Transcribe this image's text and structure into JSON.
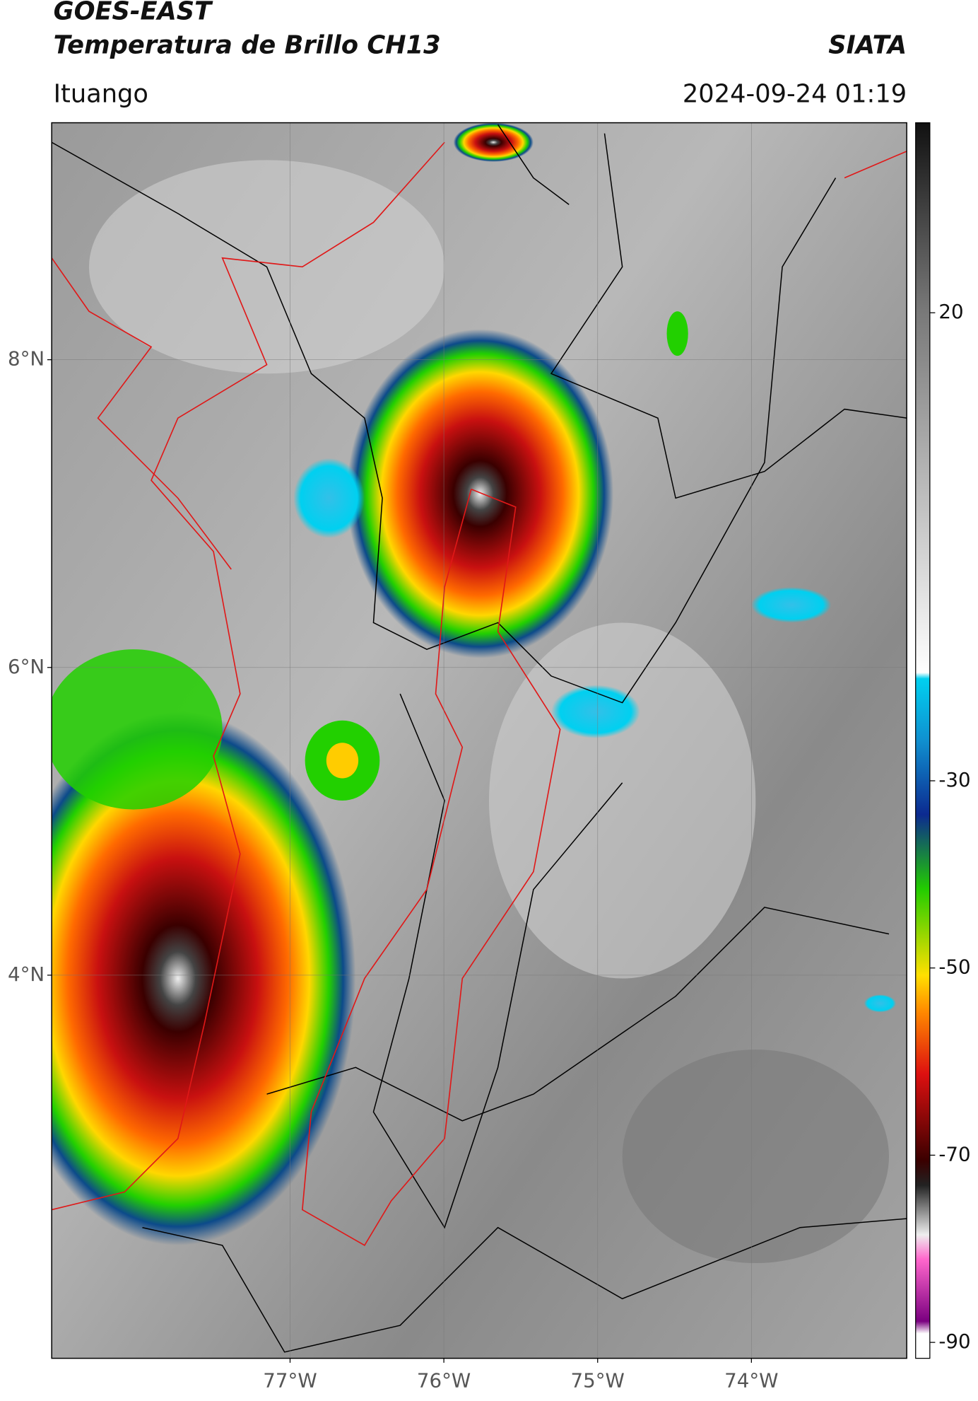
{
  "header": {
    "title": "GOES-EAST",
    "subtitle": "Temperatura de Brillo CH13",
    "org": "SIATA",
    "region": "Ituango",
    "timestamp": "2024-09-24 01:19"
  },
  "map": {
    "ylim": [
      1.51,
      9.54
    ],
    "xlim": [
      -78.55,
      -72.99
    ],
    "yticks": [
      {
        "value": 8,
        "label": "8°N"
      },
      {
        "value": 6,
        "label": "6°N"
      },
      {
        "value": 4,
        "label": "4°N"
      }
    ],
    "xticks": [
      {
        "value": -77,
        "label": "77°W"
      },
      {
        "value": -76,
        "label": "76°W"
      },
      {
        "value": -75,
        "label": "75°W"
      },
      {
        "value": -74,
        "label": "74°W"
      }
    ],
    "grid": true
  },
  "colorbar": {
    "lim": [
      -91.7,
      40.3
    ],
    "ticks": [
      20,
      -30,
      -50,
      -70,
      -90
    ]
  }
}
